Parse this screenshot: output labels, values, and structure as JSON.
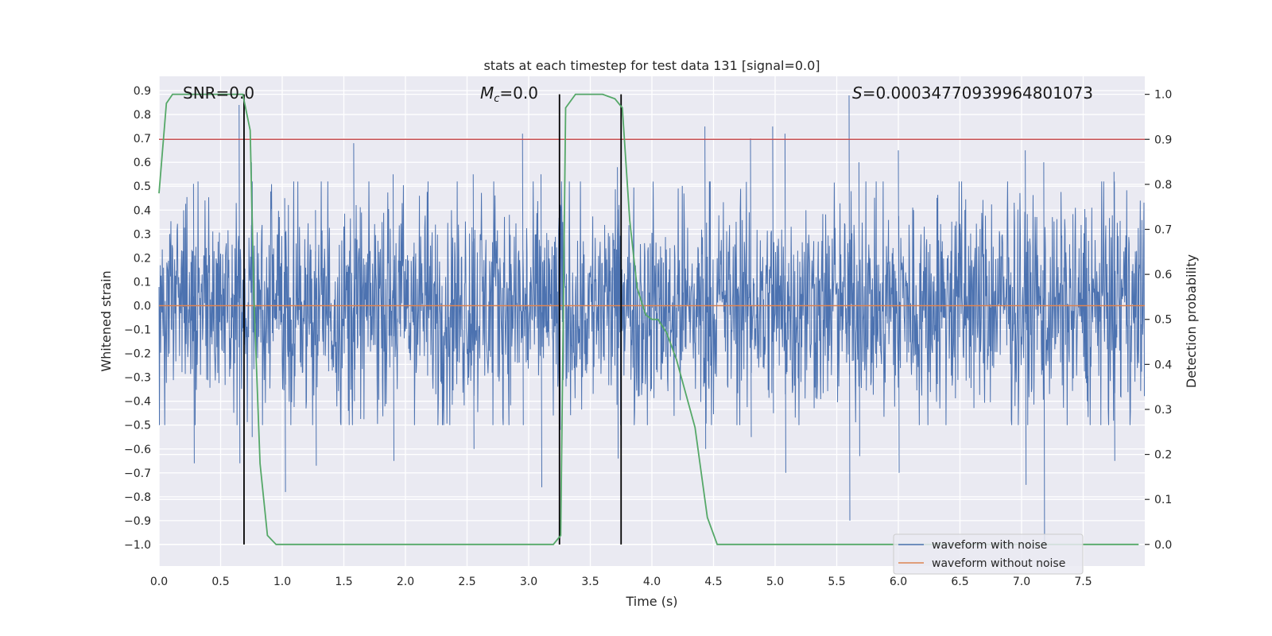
{
  "chart_data": {
    "type": "line",
    "title": "stats at each timestep for test data 131 [signal=0.0]",
    "xlabel": "Time (s)",
    "ylabel_left": "Whitened strain",
    "ylabel_right": "Detection probability",
    "xlim": [
      0.0,
      8.0
    ],
    "ylim_left": [
      -1.09,
      0.96
    ],
    "ylim_right": [
      -0.048,
      1.04
    ],
    "x_ticks": [
      "0.0",
      "0.5",
      "1.0",
      "1.5",
      "2.0",
      "2.5",
      "3.0",
      "3.5",
      "4.0",
      "4.5",
      "5.0",
      "5.5",
      "6.0",
      "6.5",
      "7.0",
      "7.5"
    ],
    "y_left_ticks": [
      "0.9",
      "0.8",
      "0.7",
      "0.6",
      "0.5",
      "0.4",
      "0.3",
      "0.2",
      "0.1",
      "0.0",
      "−0.1",
      "−0.2",
      "−0.3",
      "−0.4",
      "−0.5",
      "−0.6",
      "−0.7",
      "−0.8",
      "−0.9",
      "−1.0"
    ],
    "y_right_ticks": [
      "1.0",
      "0.9",
      "0.8",
      "0.7",
      "0.6",
      "0.5",
      "0.4",
      "0.3",
      "0.2",
      "0.1",
      "0.0"
    ],
    "grid": true,
    "legend": {
      "location": "lower-right",
      "entries": [
        {
          "label": "waveform with noise",
          "color": "#4c72b0"
        },
        {
          "label": "waveform without noise",
          "color": "#dd8452"
        }
      ]
    },
    "annotations": {
      "snr": "SNR=0.0",
      "mc_symbol": "M",
      "mc_sub": "c",
      "mc_value": "=0.0",
      "s_symbol": "S",
      "s_value": "=0.00034770939964801073"
    },
    "series": [
      {
        "name": "waveform with noise",
        "axis": "left",
        "color": "#4c72b0",
        "style": "dense-noise",
        "amplitude_typical": 0.3,
        "peaks": [
          [
            0.65,
            0.84,
            -0.66
          ],
          [
            0.28,
            0.51,
            -0.66
          ],
          [
            0.75,
            0.6,
            -0.55
          ],
          [
            1.02,
            0.45,
            -0.78
          ],
          [
            1.27,
            0.4,
            -0.67
          ],
          [
            1.58,
            0.68,
            -0.4
          ],
          [
            1.9,
            0.55,
            -0.65
          ],
          [
            2.55,
            0.55,
            -0.6
          ],
          [
            2.95,
            0.72,
            -0.5
          ],
          [
            3.1,
            0.55,
            -0.76
          ],
          [
            3.25,
            0.47,
            -0.52
          ],
          [
            3.72,
            0.58,
            -0.64
          ],
          [
            4.43,
            0.75,
            -0.6
          ],
          [
            4.8,
            0.7,
            -0.55
          ],
          [
            4.98,
            0.75,
            -0.45
          ],
          [
            5.08,
            0.72,
            -0.7
          ],
          [
            5.6,
            0.88,
            -0.9
          ],
          [
            5.68,
            0.6,
            -0.63
          ],
          [
            6.0,
            0.65,
            -0.7
          ],
          [
            7.18,
            0.6,
            -1.0
          ],
          [
            7.03,
            0.65,
            -0.75
          ],
          [
            7.75,
            0.56,
            -0.65
          ]
        ]
      },
      {
        "name": "waveform without noise",
        "axis": "left",
        "color": "#dd8452",
        "x": [
          0.0,
          8.0
        ],
        "y": [
          0.0,
          0.0
        ]
      },
      {
        "name": "",
        "axis": "right",
        "color": "#55a868",
        "x": [
          0.0,
          0.06,
          0.11,
          0.2,
          0.3,
          0.6,
          0.68,
          0.74,
          0.77,
          0.82,
          0.88,
          0.95,
          1.05,
          3.2,
          3.26,
          3.3,
          3.38,
          3.45,
          3.6,
          3.7,
          3.76,
          3.82,
          3.88,
          3.95,
          4.0,
          4.05,
          4.12,
          4.2,
          4.28,
          4.35,
          4.45,
          4.53,
          4.6,
          5.7,
          6.0,
          7.95
        ],
        "y": [
          0.78,
          0.98,
          1.0,
          1.0,
          1.0,
          1.0,
          1.0,
          0.92,
          0.55,
          0.18,
          0.02,
          0.0,
          0.0,
          0.0,
          0.02,
          0.97,
          1.0,
          1.0,
          1.0,
          0.99,
          0.97,
          0.72,
          0.57,
          0.51,
          0.5,
          0.5,
          0.47,
          0.41,
          0.33,
          0.26,
          0.06,
          0.0,
          0.0,
          0.0,
          0.0,
          0.0
        ]
      }
    ],
    "threshold_line": {
      "axis": "right",
      "y": 0.9,
      "color": "#c44e52"
    },
    "vertical_markers": {
      "color": "#000000",
      "x": [
        0.69,
        3.25,
        3.75
      ],
      "y_range_right": [
        0.0,
        1.0
      ]
    }
  }
}
